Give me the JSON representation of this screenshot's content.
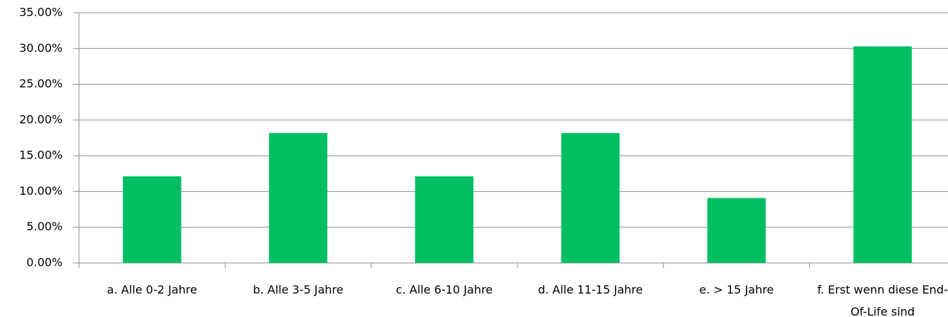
{
  "chart_data": {
    "type": "bar",
    "categories": [
      "a. Alle 0-2 Jahre",
      "b. Alle 3-5 Jahre",
      "c. Alle 6-10 Jahre",
      "d. Alle 11-15 Jahre",
      "e. > 15 Jahre",
      "f. Erst wenn diese End-Of-Life sind"
    ],
    "values": [
      12.12,
      18.18,
      12.12,
      18.18,
      9.09,
      30.3
    ],
    "color": "#00bf63",
    "ylim": [
      0,
      35
    ],
    "yticks": [
      {
        "value": 0,
        "label": "0.00%"
      },
      {
        "value": 5,
        "label": "5.00%"
      },
      {
        "value": 10,
        "label": "10.00%"
      },
      {
        "value": 15,
        "label": "15.00%"
      },
      {
        "value": 20,
        "label": "20.00%"
      },
      {
        "value": 25,
        "label": "25.00%"
      },
      {
        "value": 30,
        "label": "30.00%"
      },
      {
        "value": 35,
        "label": "35.00%"
      }
    ],
    "grid": true
  }
}
